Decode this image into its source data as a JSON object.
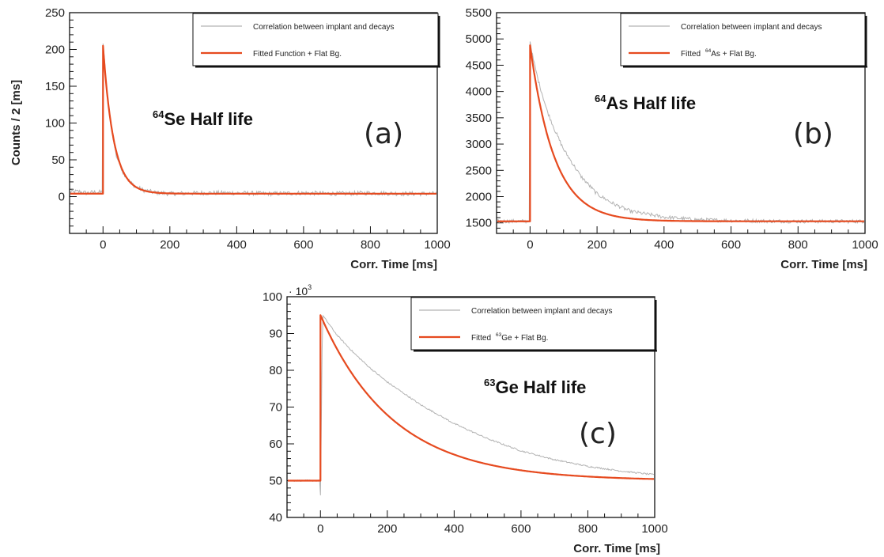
{
  "chart_data": [
    {
      "id": "a",
      "type": "line",
      "panel_label": "(a)",
      "annotation": {
        "superscript": "64",
        "text": "Se Half life"
      },
      "xlabel": "Corr. Time [ms]",
      "ylabel": "Counts / 2 [ms]",
      "xlim": [
        -100,
        1000
      ],
      "ylim": [
        -50,
        250
      ],
      "xticks": [
        0,
        200,
        400,
        600,
        800,
        1000
      ],
      "yticks": [
        0,
        50,
        100,
        150,
        200,
        250
      ],
      "y_multiplier": null,
      "legend": {
        "position": "top-right",
        "entries": [
          {
            "label_pre": "Correlation between implant and decays",
            "label_sup": "",
            "label_post": "",
            "color": "#b3b3b3"
          },
          {
            "label_pre": "Fitted Function + Flat Bg.",
            "label_sup": "",
            "label_post": "",
            "color": "#e64a1f"
          }
        ]
      },
      "fit": {
        "baseline": 4,
        "peak_time": 0,
        "peak_value": 205,
        "half_life_ms": 22
      },
      "series": [
        {
          "name": "Correlation between implant and decays",
          "color": "#b3b3b3",
          "noise": 3,
          "points": [
            [
              -100,
              6
            ],
            [
              -75,
              7
            ],
            [
              -50,
              5
            ],
            [
              -25,
              6
            ],
            [
              -2,
              6
            ],
            [
              0,
              208
            ],
            [
              5,
              185
            ],
            [
              10,
              150
            ],
            [
              15,
              130
            ],
            [
              20,
              110
            ],
            [
              30,
              80
            ],
            [
              40,
              55
            ],
            [
              50,
              45
            ],
            [
              60,
              33
            ],
            [
              80,
              20
            ],
            [
              100,
              13
            ],
            [
              120,
              9
            ],
            [
              150,
              6
            ],
            [
              200,
              4
            ],
            [
              300,
              5
            ],
            [
              400,
              5
            ],
            [
              500,
              4
            ],
            [
              600,
              5
            ],
            [
              700,
              4
            ],
            [
              800,
              5
            ],
            [
              900,
              4
            ],
            [
              1000,
              4
            ]
          ]
        }
      ]
    },
    {
      "id": "b",
      "type": "line",
      "panel_label": "(b)",
      "annotation": {
        "superscript": "64",
        "text": "As Half life"
      },
      "xlabel": "Corr. Time [ms]",
      "ylabel": "",
      "xlim": [
        -100,
        1000
      ],
      "ylim": [
        1300,
        5500
      ],
      "xticks": [
        0,
        200,
        400,
        600,
        800,
        1000
      ],
      "yticks": [
        1500,
        2000,
        2500,
        3000,
        3500,
        4000,
        4500,
        5000,
        5500
      ],
      "y_multiplier": null,
      "legend": {
        "position": "top-right",
        "entries": [
          {
            "label_pre": "Correlation between implant and decays",
            "label_sup": "",
            "label_post": "",
            "color": "#b3b3b3"
          },
          {
            "label_pre": "Fitted",
            "label_sup": "64",
            "label_post": "As + Flat Bg.",
            "color": "#e64a1f"
          }
        ]
      },
      "fit": {
        "baseline": 1530,
        "peak_time": 0,
        "peak_value": 4880,
        "half_life_ms": 50
      },
      "series": [
        {
          "name": "Correlation between implant and decays",
          "color": "#b3b3b3",
          "noise": 35,
          "points": [
            [
              -100,
              1530
            ],
            [
              -50,
              1530
            ],
            [
              -2,
              1530
            ],
            [
              0,
              4950
            ],
            [
              10,
              4600
            ],
            [
              25,
              4200
            ],
            [
              50,
              3650
            ],
            [
              75,
              3250
            ],
            [
              100,
              2900
            ],
            [
              150,
              2400
            ],
            [
              200,
              2050
            ],
            [
              250,
              1860
            ],
            [
              300,
              1720
            ],
            [
              400,
              1610
            ],
            [
              500,
              1560
            ],
            [
              600,
              1545
            ],
            [
              700,
              1535
            ],
            [
              800,
              1530
            ],
            [
              900,
              1530
            ],
            [
              1000,
              1530
            ]
          ]
        }
      ]
    },
    {
      "id": "c",
      "type": "line",
      "panel_label": "(c)",
      "annotation": {
        "superscript": "63",
        "text": "Ge Half life"
      },
      "xlabel": "Corr. Time [ms]",
      "ylabel": "",
      "xlim": [
        -100,
        1000
      ],
      "ylim": [
        40,
        100
      ],
      "xticks": [
        0,
        200,
        400,
        600,
        800,
        1000
      ],
      "yticks": [
        40,
        50,
        60,
        70,
        80,
        90,
        100
      ],
      "y_multiplier": {
        "base": "10",
        "exponent": "3"
      },
      "legend": {
        "position": "top-right",
        "entries": [
          {
            "label_pre": "Correlation between implant and decays",
            "label_sup": "",
            "label_post": "",
            "color": "#b3b3b3"
          },
          {
            "label_pre": "Fitted",
            "label_sup": "63",
            "label_post": "Ge + Flat Bg.",
            "color": "#e64a1f"
          }
        ]
      },
      "fit": {
        "baseline": 50,
        "peak_time": 0,
        "peak_value": 95,
        "half_life_ms": 150
      },
      "series": [
        {
          "name": "Correlation between implant and decays",
          "color": "#b3b3b3",
          "noise": 0.2,
          "points": [
            [
              -100,
              50
            ],
            [
              -50,
              50
            ],
            [
              -2,
              50
            ],
            [
              0,
              46
            ],
            [
              3,
              68
            ],
            [
              6,
              95
            ],
            [
              50,
              89.5
            ],
            [
              100,
              84.7
            ],
            [
              150,
              80.5
            ],
            [
              200,
              76.8
            ],
            [
              300,
              70.6
            ],
            [
              400,
              65.5
            ],
            [
              500,
              61.4
            ],
            [
              600,
              58.1
            ],
            [
              700,
              55.7
            ],
            [
              800,
              53.9
            ],
            [
              900,
              52.6
            ],
            [
              1000,
              51.6
            ]
          ]
        }
      ]
    }
  ]
}
